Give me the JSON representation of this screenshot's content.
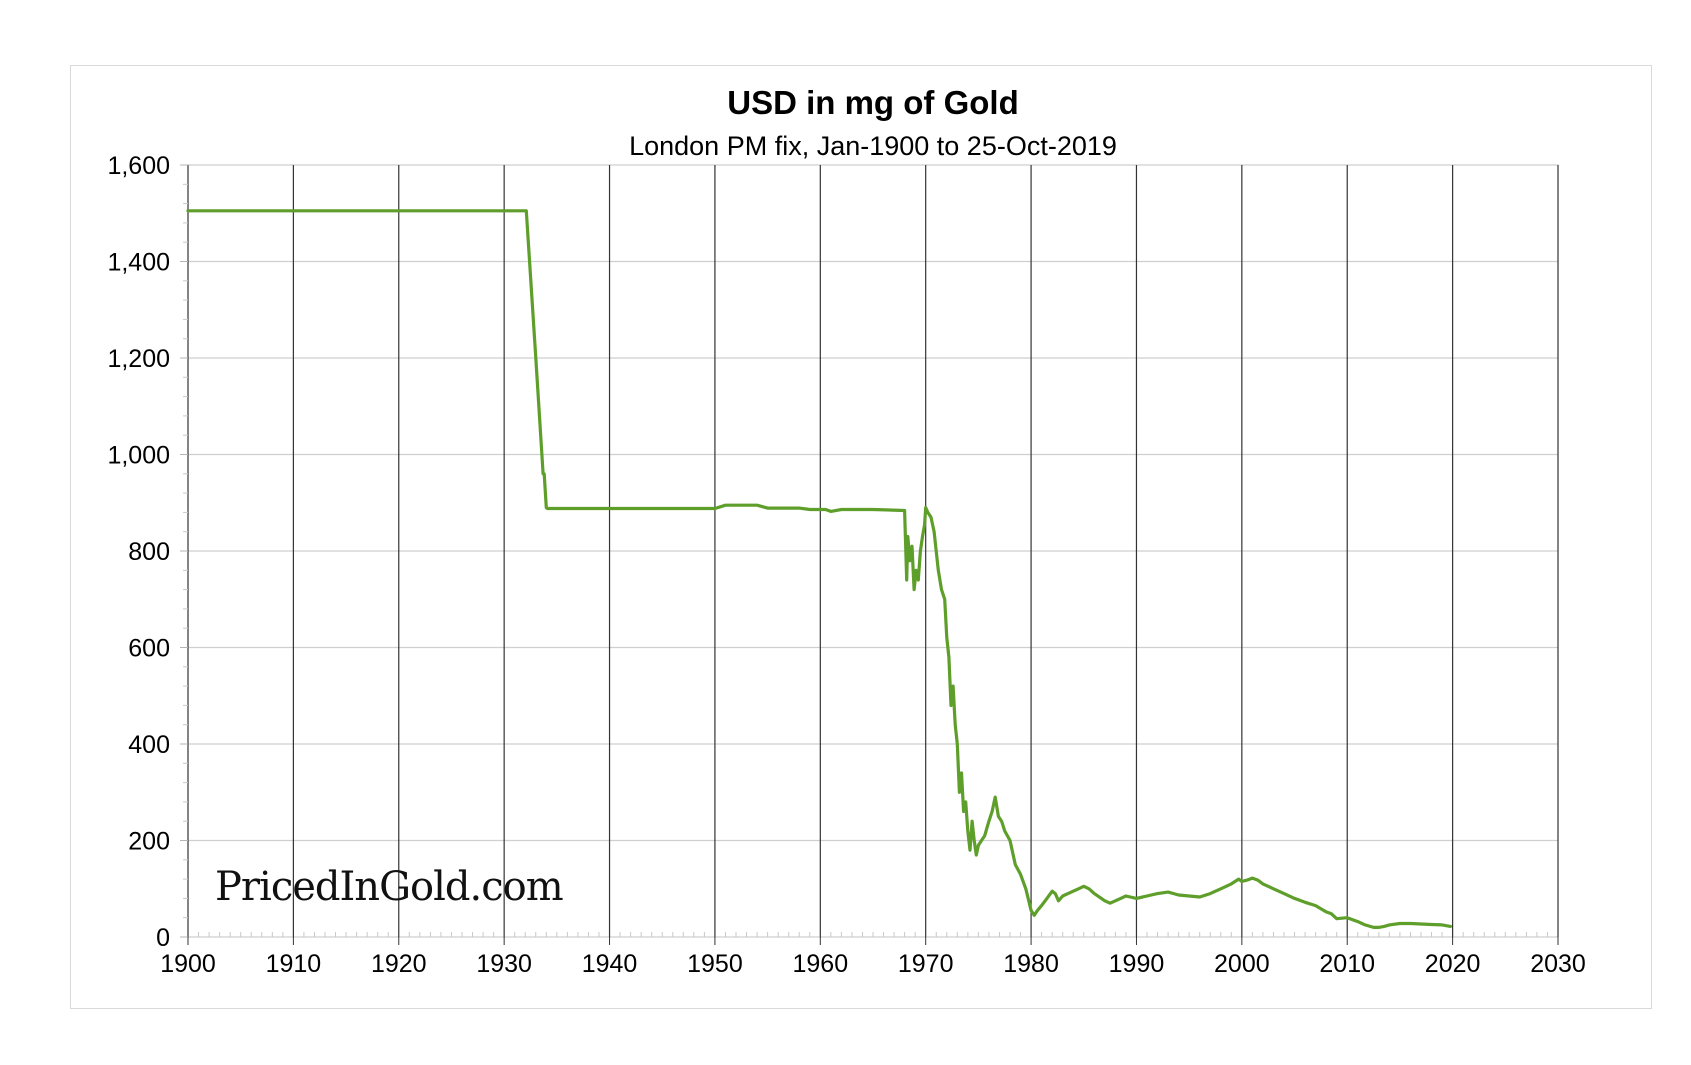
{
  "chart_data": {
    "type": "line",
    "title": "USD in mg of Gold",
    "subtitle": "London PM fix, Jan-1900 to 25-Oct-2019",
    "xlabel": "",
    "ylabel": "",
    "xlim": [
      1900,
      2030
    ],
    "ylim": [
      0,
      1600
    ],
    "x_ticks": [
      "1900",
      "1910",
      "1920",
      "1930",
      "1940",
      "1950",
      "1960",
      "1970",
      "1980",
      "1990",
      "2000",
      "2010",
      "2020",
      "2030"
    ],
    "y_ticks": [
      "0",
      "200",
      "400",
      "600",
      "800",
      "1,000",
      "1,200",
      "1,400",
      "1,600"
    ],
    "grid": true,
    "line_color": "#5e9e2a",
    "series": [
      {
        "x": [
          1900,
          1932.1,
          1933.0,
          1933.7,
          1933.8,
          1934.0,
          1934.1,
          1940,
          1950,
          1951,
          1954,
          1955,
          1958,
          1959,
          1960.5,
          1961,
          1962,
          1965,
          1968.0,
          1968.2,
          1968.3,
          1968.5,
          1968.7,
          1968.9,
          1969.1,
          1969.3,
          1969.5,
          1969.7,
          1969.9,
          1970.0,
          1970.2,
          1970.5,
          1970.8,
          1971.0,
          1971.2,
          1971.5,
          1971.8,
          1972.0,
          1972.2,
          1972.4,
          1972.6,
          1972.8,
          1973.0,
          1973.2,
          1973.4,
          1973.6,
          1973.8,
          1974.0,
          1974.2,
          1974.4,
          1974.6,
          1974.8,
          1975.0,
          1975.3,
          1975.6,
          1976.0,
          1976.3,
          1976.6,
          1976.9,
          1977.2,
          1977.5,
          1978.0,
          1978.5,
          1979.0,
          1979.5,
          1980.0,
          1980.3,
          1980.6,
          1981.0,
          1981.5,
          1982.0,
          1982.3,
          1982.6,
          1983.0,
          1983.5,
          1984.0,
          1984.5,
          1985.0,
          1985.5,
          1986.0,
          1987.0,
          1987.5,
          1988.0,
          1988.5,
          1989.0,
          1990.0,
          1991.0,
          1992.0,
          1993.0,
          1994.0,
          1995.0,
          1996.0,
          1997.0,
          1998.0,
          1999.0,
          1999.7,
          2000.0,
          2000.5,
          2001.0,
          2001.5,
          2002.0,
          2003.0,
          2004.0,
          2005.0,
          2006.0,
          2007.0,
          2008.0,
          2008.5,
          2009.0,
          2010.0,
          2011.0,
          2011.7,
          2012.5,
          2013.0,
          2013.5,
          2014.0,
          2015.0,
          2016.0,
          2017.0,
          2018.0,
          2019.0,
          2019.8
        ],
        "y": [
          1505,
          1505,
          1200,
          960,
          960,
          890,
          888,
          888,
          888,
          895,
          895,
          889,
          889,
          886,
          886,
          882,
          886,
          886,
          884,
          740,
          830,
          780,
          810,
          720,
          760,
          740,
          800,
          830,
          855,
          890,
          880,
          870,
          840,
          800,
          760,
          720,
          700,
          620,
          580,
          480,
          520,
          440,
          400,
          300,
          340,
          260,
          280,
          220,
          180,
          240,
          200,
          170,
          190,
          200,
          210,
          240,
          260,
          290,
          250,
          240,
          220,
          200,
          150,
          130,
          100,
          55,
          45,
          55,
          65,
          80,
          95,
          90,
          75,
          85,
          90,
          95,
          100,
          105,
          100,
          90,
          75,
          70,
          75,
          80,
          85,
          80,
          85,
          90,
          93,
          87,
          85,
          83,
          90,
          100,
          110,
          120,
          115,
          118,
          122,
          118,
          110,
          100,
          90,
          80,
          72,
          65,
          52,
          48,
          38,
          40,
          32,
          25,
          20,
          20,
          22,
          25,
          28,
          28,
          27,
          26,
          25,
          22
        ]
      }
    ]
  },
  "watermark": "PricedInGold.com"
}
